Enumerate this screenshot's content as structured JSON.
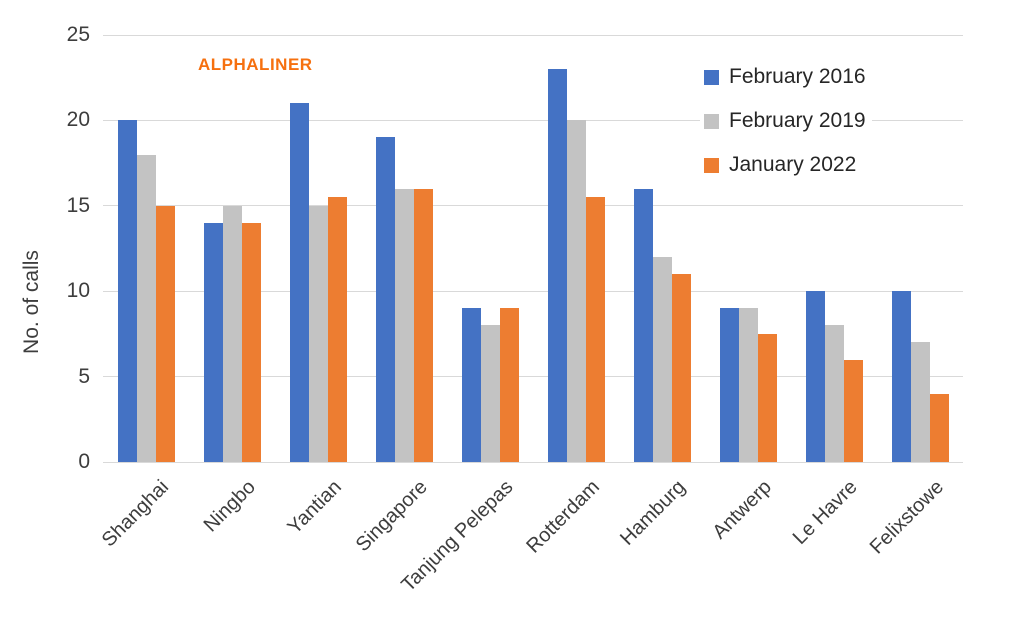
{
  "watermark": {
    "text": "ALPHALINER",
    "color": "#f6700f"
  },
  "chart_data": {
    "type": "bar",
    "title": "",
    "xlabel": "",
    "ylabel": "No. of calls",
    "ylim": [
      0,
      25
    ],
    "yticks": [
      0,
      5,
      10,
      15,
      20,
      25
    ],
    "grid": true,
    "legend_position": "upper right",
    "gridline_color": "#d9d9d9",
    "categories": [
      "Shanghai",
      "Ningbo",
      "Yantian",
      "Singapore",
      "Tanjung Pelepas",
      "Rotterdam",
      "Hamburg",
      "Antwerp",
      "Le Havre",
      "Felixstowe"
    ],
    "series": [
      {
        "name": "February 2016",
        "color": "#4472c4",
        "values": [
          20,
          14,
          21,
          19,
          9,
          23,
          16,
          9,
          10,
          10
        ]
      },
      {
        "name": "February 2019",
        "color": "#c3c3c3",
        "values": [
          18,
          15,
          15,
          16,
          8,
          20,
          12,
          9,
          8,
          7
        ]
      },
      {
        "name": "January 2022",
        "color": "#ed7d31",
        "values": [
          15,
          14,
          15.5,
          16,
          9,
          15.5,
          11,
          7.5,
          6,
          4
        ]
      }
    ]
  }
}
